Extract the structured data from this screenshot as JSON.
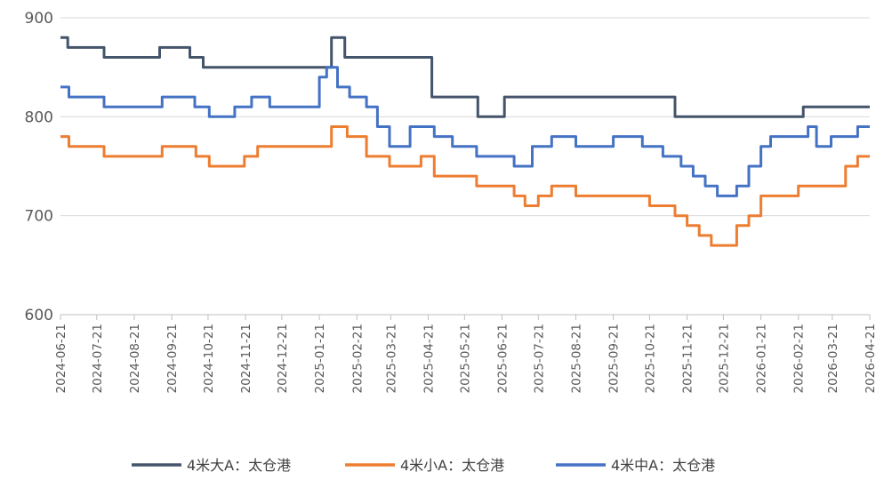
{
  "chart_data": {
    "type": "line",
    "title": "",
    "xlabel": "",
    "ylabel": "",
    "ylim": [
      600,
      900
    ],
    "yticks": [
      600,
      700,
      800,
      900
    ],
    "x_range": [
      "2024-06-21",
      "2026-04-21"
    ],
    "x_tick_labels": [
      "2024-06-21",
      "2024-07-21",
      "2024-08-21",
      "2024-09-21",
      "2024-10-21",
      "2024-11-21",
      "2024-12-21",
      "2025-01-21",
      "2025-02-21",
      "2025-03-21",
      "2025-04-21",
      "2025-05-21",
      "2025-06-21",
      "2025-07-21",
      "2025-08-21",
      "2025-09-21",
      "2025-10-21",
      "2025-11-21",
      "2025-12-21",
      "2026-01-21",
      "2026-02-21",
      "2026-03-21",
      "2026-04-21"
    ],
    "grid": true,
    "legend_position": "bottom",
    "series": [
      {
        "name": "4米大A：太仓港",
        "color": "#44546a",
        "points": [
          [
            "2024-06-21",
            880
          ],
          [
            "2024-06-27",
            870
          ],
          [
            "2024-07-27",
            860
          ],
          [
            "2024-09-11",
            870
          ],
          [
            "2024-10-06",
            860
          ],
          [
            "2024-10-17",
            850
          ],
          [
            "2025-01-31",
            880
          ],
          [
            "2025-02-11",
            860
          ],
          [
            "2025-03-10",
            860
          ],
          [
            "2025-04-24",
            820
          ],
          [
            "2025-06-01",
            800
          ],
          [
            "2025-06-23",
            820
          ],
          [
            "2025-11-11",
            800
          ],
          [
            "2026-02-25",
            810
          ],
          [
            "2026-04-21",
            810
          ]
        ]
      },
      {
        "name": "4米小A：太仓港",
        "color": "#ed7d31",
        "points": [
          [
            "2024-06-21",
            780
          ],
          [
            "2024-06-28",
            770
          ],
          [
            "2024-07-27",
            760
          ],
          [
            "2024-09-13",
            770
          ],
          [
            "2024-10-11",
            760
          ],
          [
            "2024-10-22",
            750
          ],
          [
            "2024-11-20",
            760
          ],
          [
            "2024-12-01",
            770
          ],
          [
            "2025-01-31",
            790
          ],
          [
            "2025-02-13",
            780
          ],
          [
            "2025-03-01",
            760
          ],
          [
            "2025-03-20",
            750
          ],
          [
            "2025-04-15",
            760
          ],
          [
            "2025-04-26",
            740
          ],
          [
            "2025-05-31",
            730
          ],
          [
            "2025-07-01",
            720
          ],
          [
            "2025-07-10",
            710
          ],
          [
            "2025-07-21",
            720
          ],
          [
            "2025-08-01",
            730
          ],
          [
            "2025-08-21",
            720
          ],
          [
            "2025-10-21",
            710
          ],
          [
            "2025-11-11",
            700
          ],
          [
            "2025-11-21",
            690
          ],
          [
            "2025-12-01",
            680
          ],
          [
            "2025-12-11",
            670
          ],
          [
            "2026-01-01",
            690
          ],
          [
            "2026-01-11",
            700
          ],
          [
            "2026-01-21",
            720
          ],
          [
            "2026-02-21",
            730
          ],
          [
            "2026-04-01",
            750
          ],
          [
            "2026-04-11",
            760
          ],
          [
            "2026-04-21",
            760
          ]
        ]
      },
      {
        "name": "4米中A：太仓港",
        "color": "#4472c4",
        "points": [
          [
            "2024-06-21",
            830
          ],
          [
            "2024-06-28",
            820
          ],
          [
            "2024-07-27",
            810
          ],
          [
            "2024-09-13",
            820
          ],
          [
            "2024-10-10",
            810
          ],
          [
            "2024-10-22",
            800
          ],
          [
            "2024-11-12",
            810
          ],
          [
            "2024-11-26",
            820
          ],
          [
            "2024-12-11",
            810
          ],
          [
            "2025-01-21",
            840
          ],
          [
            "2025-01-27",
            850
          ],
          [
            "2025-02-05",
            830
          ],
          [
            "2025-02-15",
            820
          ],
          [
            "2025-03-01",
            810
          ],
          [
            "2025-03-10",
            790
          ],
          [
            "2025-03-20",
            770
          ],
          [
            "2025-04-06",
            790
          ],
          [
            "2025-04-26",
            780
          ],
          [
            "2025-05-11",
            770
          ],
          [
            "2025-05-31",
            760
          ],
          [
            "2025-07-01",
            750
          ],
          [
            "2025-07-16",
            770
          ],
          [
            "2025-08-01",
            780
          ],
          [
            "2025-08-21",
            770
          ],
          [
            "2025-09-21",
            780
          ],
          [
            "2025-10-15",
            770
          ],
          [
            "2025-11-01",
            760
          ],
          [
            "2025-11-16",
            750
          ],
          [
            "2025-11-26",
            740
          ],
          [
            "2025-12-06",
            730
          ],
          [
            "2025-12-16",
            720
          ],
          [
            "2026-01-01",
            730
          ],
          [
            "2026-01-11",
            750
          ],
          [
            "2026-01-21",
            770
          ],
          [
            "2026-01-29",
            780
          ],
          [
            "2026-03-01",
            790
          ],
          [
            "2026-03-08",
            770
          ],
          [
            "2026-03-20",
            780
          ],
          [
            "2026-04-11",
            790
          ],
          [
            "2026-04-21",
            790
          ]
        ]
      }
    ]
  }
}
